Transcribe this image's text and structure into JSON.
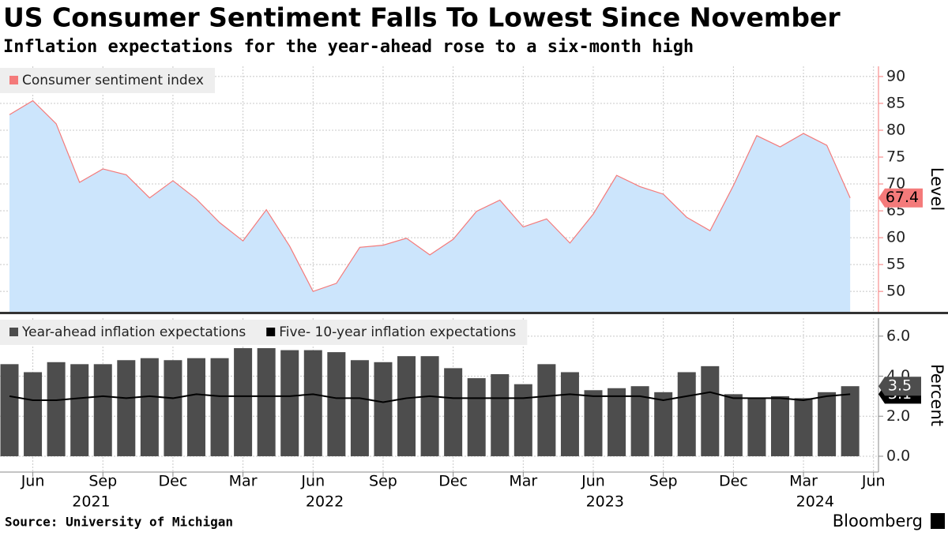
{
  "title": "US Consumer Sentiment Falls To Lowest Since November",
  "subtitle": "Inflation expectations for the year-ahead rose to a six-month high",
  "source": "Source: University of Michigan",
  "brand": "Bloomberg",
  "chart_data": [
    {
      "type": "area",
      "axis_label": "Level",
      "ylim": [
        46.2,
        91.9
      ],
      "yticks": [
        50,
        55,
        60,
        65,
        70,
        75,
        80,
        85,
        90
      ],
      "grid": true,
      "x": [
        "2021-05",
        "2021-06",
        "2021-07",
        "2021-08",
        "2021-09",
        "2021-10",
        "2021-11",
        "2021-12",
        "2022-01",
        "2022-02",
        "2022-03",
        "2022-04",
        "2022-05",
        "2022-06",
        "2022-07",
        "2022-08",
        "2022-09",
        "2022-10",
        "2022-11",
        "2022-12",
        "2023-01",
        "2023-02",
        "2023-03",
        "2023-04",
        "2023-05",
        "2023-06",
        "2023-07",
        "2023-08",
        "2023-09",
        "2023-10",
        "2023-11",
        "2023-12",
        "2024-01",
        "2024-02",
        "2024-03",
        "2024-04",
        "2024-05"
      ],
      "series": [
        {
          "name": "Consumer sentiment index",
          "color": "#f47a7a",
          "fill": "#cce5fc",
          "values": [
            82.9,
            85.5,
            81.2,
            70.3,
            72.8,
            71.7,
            67.4,
            70.6,
            67.2,
            62.8,
            59.4,
            65.2,
            58.4,
            50.0,
            51.5,
            58.2,
            58.6,
            59.9,
            56.8,
            59.7,
            64.9,
            67.0,
            62.0,
            63.5,
            59.0,
            64.4,
            71.6,
            69.5,
            68.1,
            63.8,
            61.3,
            69.7,
            79.0,
            76.9,
            79.4,
            77.2,
            67.4
          ]
        }
      ]
    },
    {
      "type": "bar",
      "axis_label": "Percent",
      "ylim": [
        -0.79,
        6.9
      ],
      "yticks": [
        {
          "value": 0,
          "label": "0.0"
        },
        {
          "value": 2,
          "label": "2.0"
        },
        {
          "value": 4,
          "label": "4.0"
        },
        {
          "value": 6,
          "label": "6.0"
        }
      ],
      "grid": true,
      "x": [
        "2021-05",
        "2021-06",
        "2021-07",
        "2021-08",
        "2021-09",
        "2021-10",
        "2021-11",
        "2021-12",
        "2022-01",
        "2022-02",
        "2022-03",
        "2022-04",
        "2022-05",
        "2022-06",
        "2022-07",
        "2022-08",
        "2022-09",
        "2022-10",
        "2022-11",
        "2022-12",
        "2023-01",
        "2023-02",
        "2023-03",
        "2023-04",
        "2023-05",
        "2023-06",
        "2023-07",
        "2023-08",
        "2023-09",
        "2023-10",
        "2023-11",
        "2023-12",
        "2024-01",
        "2024-02",
        "2024-03",
        "2024-04",
        "2024-05"
      ],
      "xticks": [
        {
          "value": "2021-06",
          "label": "Jun"
        },
        {
          "value": "2021-09",
          "label": "Sep"
        },
        {
          "value": "2021-12",
          "label": "Dec"
        },
        {
          "value": "2022-03",
          "label": "Mar"
        },
        {
          "value": "2022-06",
          "label": "Jun"
        },
        {
          "value": "2022-09",
          "label": "Sep"
        },
        {
          "value": "2022-12",
          "label": "Dec"
        },
        {
          "value": "2023-03",
          "label": "Mar"
        },
        {
          "value": "2023-06",
          "label": "Jun"
        },
        {
          "value": "2023-09",
          "label": "Sep"
        },
        {
          "value": "2023-12",
          "label": "Dec"
        },
        {
          "value": "2024-03",
          "label": "Mar"
        },
        {
          "value": "2024-06",
          "label": "Jun"
        }
      ],
      "years": [
        "2021",
        "2022",
        "2023",
        "2024"
      ],
      "series": [
        {
          "name": "Year-ahead inflation expectations",
          "type": "bar",
          "color": "#4d4d4d",
          "values": [
            4.6,
            4.2,
            4.7,
            4.6,
            4.6,
            4.8,
            4.9,
            4.8,
            4.9,
            4.9,
            5.4,
            5.4,
            5.3,
            5.3,
            5.2,
            4.8,
            4.7,
            5.0,
            5.0,
            4.4,
            3.9,
            4.1,
            3.6,
            4.6,
            4.2,
            3.3,
            3.4,
            3.5,
            3.2,
            4.2,
            4.5,
            3.1,
            2.9,
            3.0,
            2.9,
            3.2,
            3.5
          ]
        },
        {
          "name": "Five- 10-year inflation expectations",
          "type": "line",
          "color": "#000000",
          "values": [
            3.0,
            2.8,
            2.8,
            2.9,
            3.0,
            2.9,
            3.0,
            2.9,
            3.1,
            3.0,
            3.0,
            3.0,
            3.0,
            3.1,
            2.9,
            2.9,
            2.7,
            2.9,
            3.0,
            2.9,
            2.9,
            2.9,
            2.9,
            3.0,
            3.1,
            3.0,
            3.0,
            3.0,
            2.8,
            3.0,
            3.2,
            2.9,
            2.9,
            2.9,
            2.8,
            3.0,
            3.1
          ]
        }
      ]
    }
  ]
}
